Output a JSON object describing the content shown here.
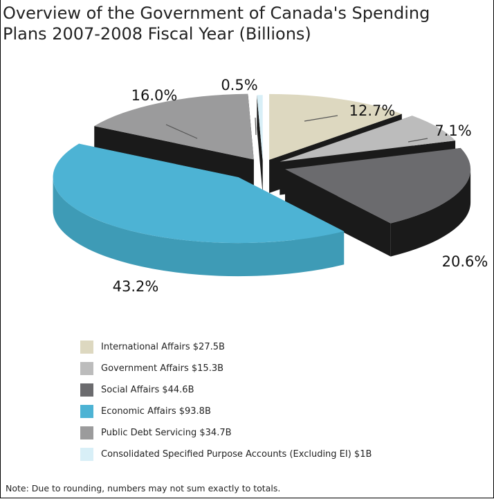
{
  "chart_data": {
    "type": "pie",
    "title_line1": "Overview of the Government of Canada's Spending",
    "title_line2": "Plans 2007-2008 Fiscal Year (Billions)",
    "slices": [
      {
        "label": "International Affairs $27.5B",
        "value": 12.7,
        "pct_label": "12.7%",
        "color": "#ddd8c0",
        "side": "#1a1a1a"
      },
      {
        "label": "Government Affairs $15.3B",
        "value": 7.1,
        "pct_label": "7.1%",
        "color": "#bcbcbc",
        "side": "#1a1a1a"
      },
      {
        "label": "Social Affairs $44.6B",
        "value": 20.6,
        "pct_label": "20.6%",
        "color": "#6b6b6e",
        "side": "#1a1a1a"
      },
      {
        "label": "Economic Affairs $93.8B",
        "value": 43.2,
        "pct_label": "43.2%",
        "color": "#4db3d4",
        "side": "#3e9bb6"
      },
      {
        "label": "Public Debt Servicing $34.7B",
        "value": 16.0,
        "pct_label": "16.0%",
        "color": "#9b9b9c",
        "side": "#1a1a1a"
      },
      {
        "label": "Consolidated Specified Purpose Accounts (Excluding EI) $1B",
        "value": 0.5,
        "pct_label": "0.5%",
        "color": "#d8eff7",
        "side": "#1a1a1a"
      }
    ],
    "note": "Note: Due to rounding, numbers may not sum exactly to totals."
  }
}
